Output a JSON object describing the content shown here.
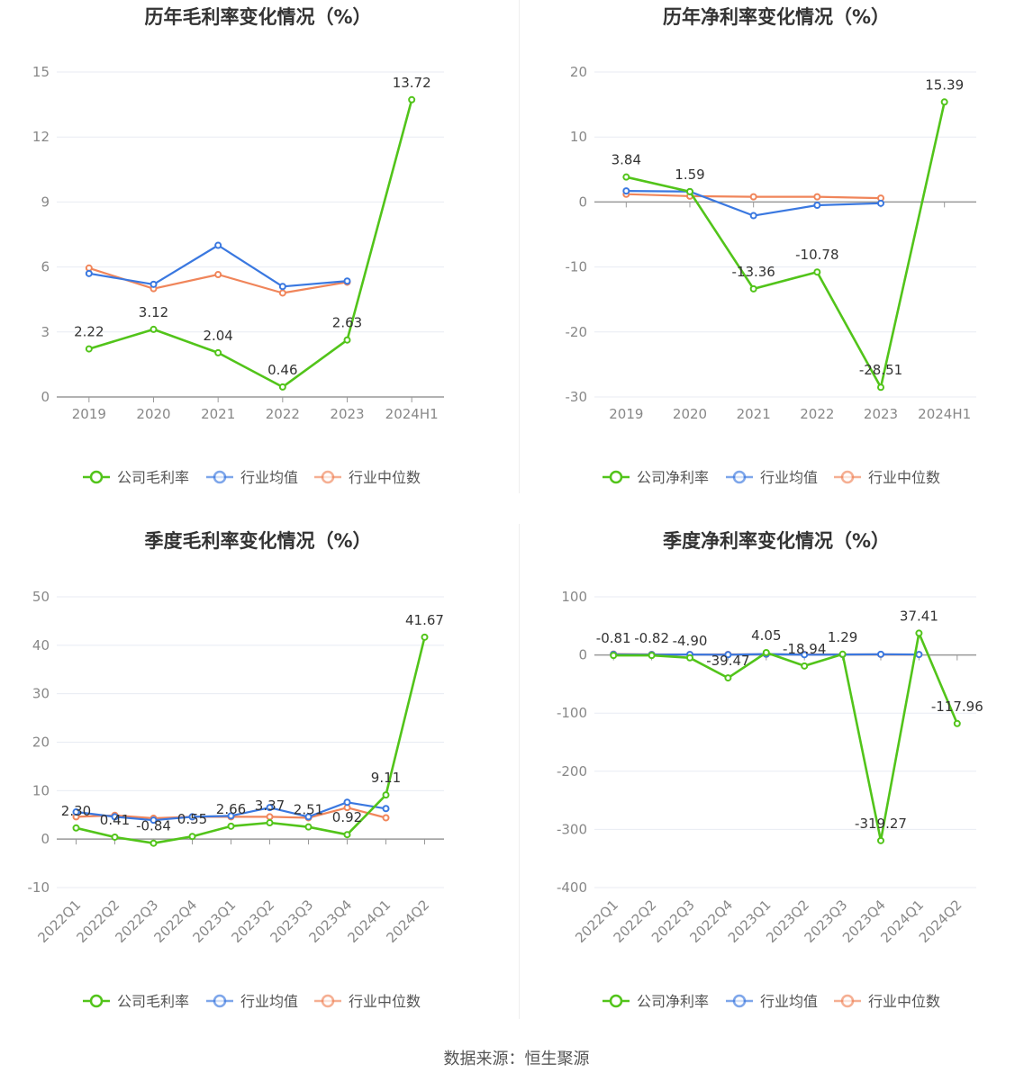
{
  "colors": {
    "company": "#52c41a",
    "avg": "#3a78e0",
    "median": "#f0855a",
    "grid": "#e8ebf3",
    "axis": "#999999",
    "tick_text": "#888888",
    "title_text": "#333333",
    "label_text": "#333333"
  },
  "source_text": "数据来源：恒生聚源",
  "chart_data": [
    {
      "type": "line",
      "title": "历年毛利率变化情况（%）",
      "categories": [
        "2019",
        "2020",
        "2021",
        "2022",
        "2023",
        "2024H1"
      ],
      "ylim": [
        0,
        15
      ],
      "yticks": [
        0,
        3,
        6,
        9,
        12,
        15
      ],
      "ytick_labels": [
        "0",
        "3",
        "6",
        "9",
        "12",
        "15"
      ],
      "legend": [
        "公司毛利率",
        "行业均值",
        "行业中位数"
      ],
      "series": [
        {
          "name": "公司毛利率",
          "role": "company",
          "values": [
            2.22,
            3.12,
            2.04,
            0.46,
            2.63,
            13.72
          ],
          "labels": [
            "2.22",
            "3.12",
            "2.04",
            "0.46",
            "2.63",
            "13.72"
          ]
        },
        {
          "name": "行业均值",
          "role": "avg",
          "values": [
            5.7,
            5.2,
            7.0,
            5.1,
            5.35,
            null
          ]
        },
        {
          "name": "行业中位数",
          "role": "median",
          "values": [
            5.95,
            5.0,
            5.65,
            4.8,
            5.3,
            null
          ]
        }
      ]
    },
    {
      "type": "line",
      "title": "历年净利率变化情况（%）",
      "categories": [
        "2019",
        "2020",
        "2021",
        "2022",
        "2023",
        "2024H1"
      ],
      "ylim": [
        -30,
        20
      ],
      "yticks": [
        -30,
        -20,
        -10,
        0,
        10,
        20
      ],
      "ytick_labels": [
        "-30",
        "-20",
        "-10",
        "0",
        "10",
        "20"
      ],
      "legend": [
        "公司净利率",
        "行业均值",
        "行业中位数"
      ],
      "series": [
        {
          "name": "公司净利率",
          "role": "company",
          "values": [
            3.84,
            1.59,
            -13.36,
            -10.78,
            -28.51,
            15.39
          ],
          "labels": [
            "3.84",
            "1.59",
            "-13.36",
            "-10.78",
            "-28.51",
            "15.39"
          ]
        },
        {
          "name": "行业均值",
          "role": "avg",
          "values": [
            1.7,
            1.6,
            -2.1,
            -0.5,
            -0.2,
            null
          ]
        },
        {
          "name": "行业中位数",
          "role": "median",
          "values": [
            1.2,
            0.9,
            0.8,
            0.8,
            0.6,
            null
          ]
        }
      ]
    },
    {
      "type": "line",
      "title": "季度毛利率变化情况（%）",
      "categories": [
        "2022Q1",
        "2022Q2",
        "2022Q3",
        "2022Q4",
        "2023Q1",
        "2023Q2",
        "2023Q3",
        "2023Q4",
        "2024Q1",
        "2024Q2"
      ],
      "ylim": [
        -10,
        50
      ],
      "yticks": [
        -10,
        0,
        10,
        20,
        30,
        40,
        50
      ],
      "ytick_labels": [
        "-10",
        "0",
        "10",
        "20",
        "30",
        "40",
        "50"
      ],
      "legend": [
        "公司毛利率",
        "行业均值",
        "行业中位数"
      ],
      "series": [
        {
          "name": "公司毛利率",
          "role": "company",
          "values": [
            2.3,
            0.41,
            -0.84,
            0.55,
            2.66,
            3.37,
            2.51,
            0.92,
            9.11,
            41.67
          ],
          "labels": [
            "2.30",
            "0.41",
            "-0.84",
            "0.55",
            "2.66",
            "3.37",
            "2.51",
            "0.92",
            "9.11",
            "41.67"
          ]
        },
        {
          "name": "行业均值",
          "role": "avg",
          "values": [
            5.6,
            4.6,
            3.9,
            4.6,
            4.8,
            6.5,
            4.6,
            7.6,
            6.3,
            null
          ]
        },
        {
          "name": "行业中位数",
          "role": "median",
          "values": [
            4.6,
            4.9,
            4.3,
            4.6,
            4.6,
            4.6,
            4.4,
            6.5,
            4.4,
            null
          ]
        }
      ]
    },
    {
      "type": "line",
      "title": "季度净利率变化情况（%）",
      "categories": [
        "2022Q1",
        "2022Q2",
        "2022Q3",
        "2022Q4",
        "2023Q1",
        "2023Q2",
        "2023Q3",
        "2023Q4",
        "2024Q1",
        "2024Q2"
      ],
      "ylim": [
        -400,
        100
      ],
      "yticks": [
        -400,
        -300,
        -200,
        -100,
        0,
        100
      ],
      "ytick_labels": [
        "-400",
        "-300",
        "-200",
        "-100",
        "0",
        "100"
      ],
      "legend": [
        "公司净利率",
        "行业均值",
        "行业中位数"
      ],
      "series": [
        {
          "name": "公司净利率",
          "role": "company",
          "values": [
            -0.81,
            -0.82,
            -4.9,
            -39.47,
            4.05,
            -18.94,
            1.29,
            -319.27,
            37.41,
            -117.96
          ],
          "labels": [
            "-0.81",
            "-0.82",
            "-4.90",
            "-39.47",
            "4.05",
            "-18.94",
            "1.29",
            "-319.27",
            "37.41",
            "-117.96"
          ]
        },
        {
          "name": "行业均值",
          "role": "avg",
          "values": [
            1.0,
            0.6,
            0.8,
            0.5,
            1.5,
            0.4,
            0.8,
            1.2,
            0.8,
            null
          ]
        },
        {
          "name": "行业中位数",
          "role": "median",
          "values": [
            1.5,
            1.0,
            0.8,
            0.9,
            1.2,
            1.0,
            0.9,
            1.0,
            0.8,
            null
          ]
        }
      ]
    }
  ]
}
